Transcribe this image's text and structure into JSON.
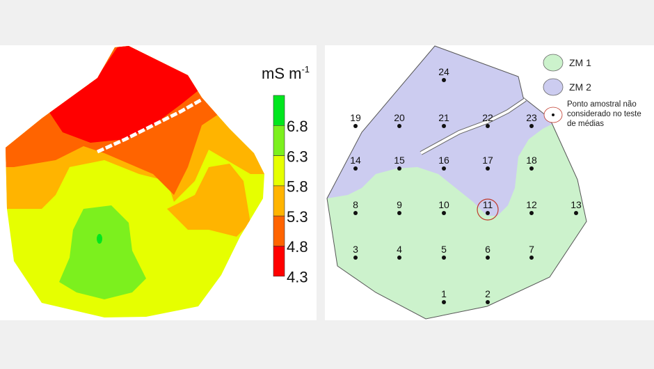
{
  "left_map": {
    "colorbar": {
      "unit_label": "mS m",
      "unit_exponent": "-1",
      "ticks": [
        "6.8",
        "6.3",
        "5.8",
        "5.3",
        "4.8",
        "4.3"
      ],
      "colors": [
        "#00e61e",
        "#7cf01e",
        "#e6ff00",
        "#ffb400",
        "#ff6400",
        "#ff0000"
      ]
    }
  },
  "right_map": {
    "legend": {
      "zm1": {
        "label": "ZM 1",
        "color": "#ccf2cc"
      },
      "zm2": {
        "label": "ZM 2",
        "color": "#ccccf0"
      },
      "excluded": {
        "line1": "Ponto amostral não",
        "line2": "considerado no teste",
        "line3": "de médias",
        "color": "#c0392b"
      }
    },
    "points": [
      "24",
      "19",
      "20",
      "21",
      "22",
      "23",
      "14",
      "15",
      "16",
      "17",
      "18",
      "8",
      "9",
      "10",
      "11",
      "12",
      "13",
      "3",
      "4",
      "5",
      "6",
      "7",
      "1",
      "2"
    ],
    "excluded_point": "11"
  }
}
